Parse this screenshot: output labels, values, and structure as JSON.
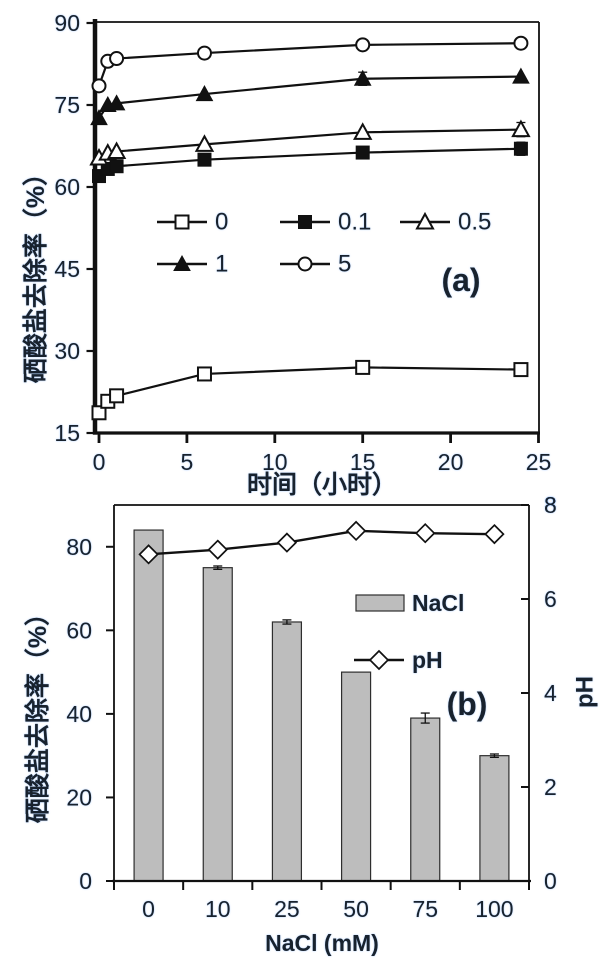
{
  "colors": {
    "series_line": "#111111",
    "bar_fill": "#bdbdbd",
    "bar_stroke": "#2e2e2e",
    "tick_text": "#18222e"
  },
  "chart_data": [
    {
      "panel": "(a)",
      "type": "line",
      "xlabel": "时间（小时）",
      "ylabel": "硒酸盐去除率（%）",
      "xlim": [
        0,
        25
      ],
      "ylim": [
        15,
        90
      ],
      "xticks": [
        "0",
        "5",
        "10",
        "15",
        "20",
        "25"
      ],
      "yticks": [
        "15",
        "30",
        "45",
        "60",
        "75",
        "90"
      ],
      "x": [
        0,
        0.5,
        1,
        6,
        15,
        24
      ],
      "series": [
        {
          "name": "0",
          "marker": "square-open",
          "values": [
            18.7,
            20.8,
            21.8,
            25.8,
            27.0,
            26.6
          ],
          "err": [
            0.6,
            0.8,
            0.8,
            0.8,
            0.7,
            0
          ]
        },
        {
          "name": "0.1",
          "marker": "square-filled",
          "values": [
            62.0,
            63.3,
            63.8,
            65.0,
            66.3,
            67.0
          ],
          "err": [
            0,
            0,
            0,
            0,
            0,
            1.2
          ]
        },
        {
          "name": "0.5",
          "marker": "triangle-open",
          "values": [
            65.3,
            66.2,
            66.5,
            67.8,
            70.0,
            70.5
          ],
          "err": [
            0,
            0,
            0,
            0,
            0,
            1.3
          ]
        },
        {
          "name": "1",
          "marker": "triangle-filled",
          "values": [
            72.6,
            75.0,
            75.3,
            77.0,
            79.8,
            80.2
          ],
          "err": [
            0,
            0,
            0,
            0,
            1.2,
            0
          ]
        },
        {
          "name": "5",
          "marker": "circle-open",
          "values": [
            78.5,
            83.0,
            83.5,
            84.5,
            86.0,
            86.3
          ],
          "err": [
            0,
            0,
            0,
            0.6,
            0.8,
            0
          ]
        }
      ],
      "legend": {
        "rows": [
          [
            "0",
            "0.1",
            "0.5"
          ],
          [
            "1",
            "5"
          ]
        ]
      }
    },
    {
      "panel": "(b)",
      "type": "bar+line",
      "xlabel": "NaCl (mM)",
      "ylabel_left": "硒酸盐去除率（%）",
      "ylabel_right": "pH",
      "categories": [
        "0",
        "10",
        "25",
        "50",
        "75",
        "100"
      ],
      "bars": {
        "name": "NaCl",
        "values": [
          84,
          75,
          62,
          50,
          39,
          30
        ],
        "err": [
          0,
          0.4,
          0.5,
          0,
          1.2,
          0.4
        ]
      },
      "line": {
        "name": "pH",
        "values": [
          6.95,
          7.05,
          7.2,
          7.45,
          7.4,
          7.38
        ]
      },
      "ylim_left": [
        0,
        90
      ],
      "yticks_left": [
        "0",
        "20",
        "40",
        "60",
        "80"
      ],
      "ylim_right": [
        0,
        8
      ],
      "yticks_right": [
        "0",
        "2",
        "4",
        "6",
        "8"
      ],
      "legend": [
        "NaCl",
        "pH"
      ]
    }
  ]
}
